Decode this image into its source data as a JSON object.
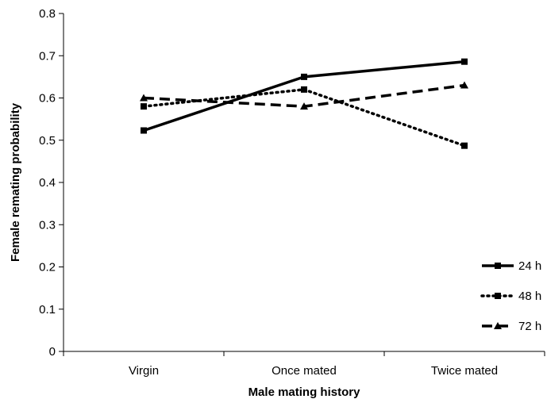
{
  "chart_data": {
    "type": "line",
    "xlabel": "Male mating history",
    "ylabel": "Female remating probability",
    "categories": [
      "Virgin",
      "Once mated",
      "Twice mated"
    ],
    "ylim": [
      0,
      0.8
    ],
    "yticks": [
      "0",
      "0.1",
      "0.2",
      "0.3",
      "0.4",
      "0.5",
      "0.6",
      "0.7",
      "0.8"
    ],
    "grid": false,
    "legend_position": "bottom-right",
    "series": [
      {
        "name": "24 h",
        "values": [
          0.523,
          0.65,
          0.686
        ],
        "marker": "square",
        "line_style": "solid",
        "color": "#000000"
      },
      {
        "name": "48 h",
        "values": [
          0.58,
          0.62,
          0.487
        ],
        "marker": "square",
        "line_style": "dotted",
        "color": "#000000"
      },
      {
        "name": "72 h",
        "values": [
          0.6,
          0.58,
          0.63
        ],
        "marker": "triangle",
        "line_style": "dashed",
        "color": "#000000"
      }
    ]
  }
}
